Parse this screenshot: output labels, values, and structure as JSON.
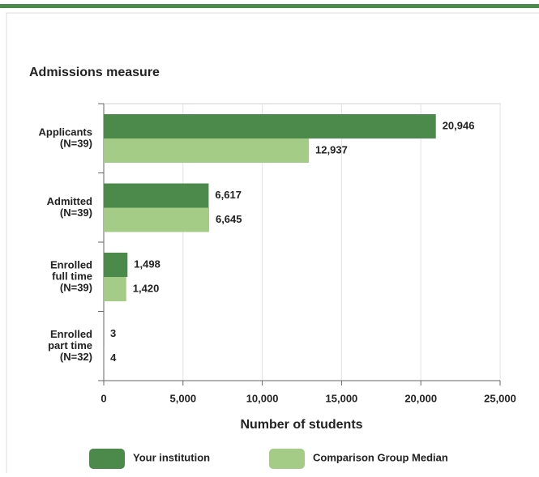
{
  "chart_data": {
    "type": "hbar",
    "title": "Admissions measure",
    "xlabel": "Number of students",
    "categories": [
      [
        "Applicants",
        "(N=39)"
      ],
      [
        "Admitted",
        "(N=39)"
      ],
      [
        "Enrolled",
        "full time",
        "(N=39)"
      ],
      [
        "Enrolled",
        "part time",
        "(N=32)"
      ]
    ],
    "series": [
      {
        "name": "Your institution",
        "color": "#4b8a4b",
        "values": [
          20946,
          6617,
          1498,
          3
        ],
        "value_labels": [
          "20,946",
          "6,617",
          "1,498",
          "3"
        ]
      },
      {
        "name": "Comparison Group Median",
        "color": "#a5cc86",
        "values": [
          12937,
          6645,
          1420,
          4
        ],
        "value_labels": [
          "12,937",
          "6,645",
          "1,420",
          "4"
        ]
      }
    ],
    "xlim": [
      0,
      25000
    ],
    "xticks": [
      0,
      {
        "value": 5000,
        "label": "5,000"
      },
      {
        "value": 10000,
        "label": "10,000"
      },
      {
        "value": 15000,
        "label": "15,000"
      },
      {
        "value": 20000,
        "label": "20,000"
      },
      {
        "value": 25000,
        "label": "25,000"
      }
    ],
    "grid": true
  }
}
